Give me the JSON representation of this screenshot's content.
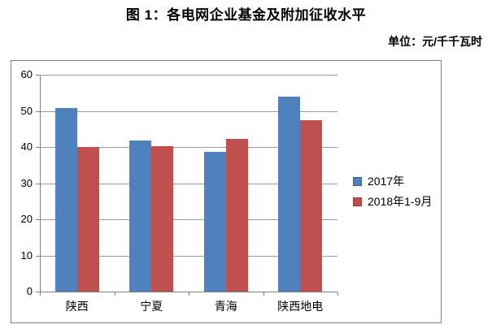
{
  "title": "图 1：各电网企业基金及附加征收水平",
  "unit_label": "单位：元/千千瓦时",
  "colors": {
    "series_2017": "#4F81BD",
    "series_2018": "#C0504D",
    "axis": "#808080",
    "gridline": "#9A9A9A",
    "frame_border": "#808080",
    "background": "#FFFFFF",
    "text": "#000000"
  },
  "chart_data": {
    "type": "bar",
    "title": "图 1：各电网企业基金及附加征收水平",
    "unit": "单位：元/千千瓦时",
    "categories": [
      "陕西",
      "宁夏",
      "青海",
      "陕西地电"
    ],
    "series": [
      {
        "name": "2017年",
        "color": "#4F81BD",
        "values": [
          50.8,
          41.8,
          38.7,
          53.9
        ]
      },
      {
        "name": "2018年1-9月",
        "color": "#C0504D",
        "values": [
          40.0,
          40.3,
          42.3,
          47.4
        ]
      }
    ],
    "xlabel": "",
    "ylabel": "",
    "ylim": [
      0,
      60
    ],
    "yticks": [
      0,
      10,
      20,
      30,
      40,
      50,
      60
    ],
    "grid": true,
    "legend_position": "right-inside"
  }
}
